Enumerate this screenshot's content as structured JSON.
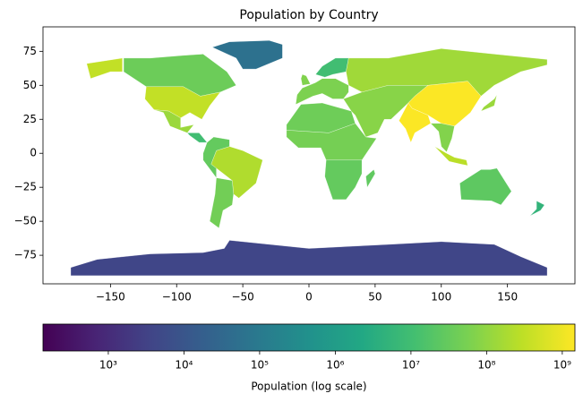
{
  "chart_data": {
    "type": "choropleth",
    "title": "Population by Country",
    "xlim": [
      -201,
      201
    ],
    "ylim": [
      -96,
      93
    ],
    "xticks": [
      {
        "value": -150,
        "label": "−150"
      },
      {
        "value": -100,
        "label": "−100"
      },
      {
        "value": -50,
        "label": "−50"
      },
      0,
      50,
      100,
      150
    ],
    "yticks": [
      75,
      50,
      25,
      0,
      {
        "value": -25,
        "label": "−25"
      },
      {
        "value": -50,
        "label": "−50"
      },
      {
        "value": -75,
        "label": "−75"
      }
    ],
    "colorbar": {
      "label": "Population (log scale)",
      "log_scale": true,
      "colormap": "viridis",
      "clim": [
        137,
        1470000000
      ],
      "ticks": [
        {
          "value": 1000,
          "label": "10³"
        },
        {
          "value": 10000,
          "label": "10⁴"
        },
        {
          "value": 100000,
          "label": "10⁵"
        },
        {
          "value": 1000000,
          "label": "10⁶"
        },
        {
          "value": 10000000,
          "label": "10⁷"
        },
        {
          "value": 100000000,
          "label": "10⁸"
        },
        {
          "value": 1000000000,
          "label": "10⁹"
        }
      ]
    },
    "regions": [
      {
        "population": 56000,
        "outlines": [
          [
            [
              -73,
              78
            ],
            [
              -60,
              82
            ],
            [
              -30,
              83
            ],
            [
              -20,
              80
            ],
            [
              -20,
              70
            ],
            [
              -40,
              62
            ],
            [
              -50,
              62
            ],
            [
              -55,
              70
            ]
          ]
        ]
      },
      {
        "population": 38000000,
        "outlines": [
          [
            [
              -140,
              70
            ],
            [
              -120,
              70
            ],
            [
              -95,
              72
            ],
            [
              -80,
              73
            ],
            [
              -62,
              60
            ],
            [
              -55,
              50
            ],
            [
              -67,
              45
            ],
            [
              -82,
              42
            ],
            [
              -95,
              49
            ],
            [
              -123,
              49
            ],
            [
              -140,
              60
            ]
          ]
        ]
      },
      {
        "population": 330000000,
        "outlines": [
          [
            [
              -123,
              49
            ],
            [
              -95,
              49
            ],
            [
              -82,
              42
            ],
            [
              -67,
              45
            ],
            [
              -75,
              35
            ],
            [
              -81,
              25
            ],
            [
              -90,
              30
            ],
            [
              -97,
              26
            ],
            [
              -106,
              31
            ],
            [
              -117,
              32
            ],
            [
              -124,
              40
            ]
          ],
          [
            [
              -168,
              66
            ],
            [
              -141,
              70
            ],
            [
              -141,
              60
            ],
            [
              -150,
              60
            ],
            [
              -165,
              55
            ]
          ]
        ]
      },
      {
        "population": 128000000,
        "outlines": [
          [
            [
              -117,
              32
            ],
            [
              -106,
              31
            ],
            [
              -97,
              26
            ],
            [
              -97,
              19
            ],
            [
              -87,
              21
            ],
            [
              -92,
              15
            ],
            [
              -105,
              20
            ],
            [
              -110,
              30
            ]
          ]
        ]
      },
      {
        "population": 10000000,
        "outlines": [
          [
            [
              -92,
              15
            ],
            [
              -83,
              15
            ],
            [
              -77,
              8
            ],
            [
              -83,
              8
            ],
            [
              -90,
              13
            ]
          ]
        ]
      },
      {
        "population": 212000000,
        "outlines": [
          [
            [
              -74,
              -8
            ],
            [
              -70,
              2
            ],
            [
              -60,
              5
            ],
            [
              -50,
              2
            ],
            [
              -35,
              -5
            ],
            [
              -40,
              -22
            ],
            [
              -53,
              -33
            ],
            [
              -57,
              -30
            ],
            [
              -58,
              -20
            ],
            [
              -70,
              -11
            ]
          ]
        ]
      },
      {
        "population": 30000000,
        "outlines": [
          [
            [
              -80,
              0
            ],
            [
              -77,
              8
            ],
            [
              -72,
              12
            ],
            [
              -60,
              10
            ],
            [
              -60,
              5
            ],
            [
              -70,
              2
            ],
            [
              -74,
              -8
            ],
            [
              -70,
              -11
            ],
            [
              -70,
              -18
            ],
            [
              -80,
              -5
            ]
          ]
        ]
      },
      {
        "population": 45000000,
        "outlines": [
          [
            [
              -70,
              -18
            ],
            [
              -58,
              -20
            ],
            [
              -57,
              -30
            ],
            [
              -58,
              -38
            ],
            [
              -65,
              -42
            ],
            [
              -68,
              -55
            ],
            [
              -75,
              -50
            ],
            [
              -71,
              -30
            ]
          ]
        ]
      },
      {
        "population": 40000000,
        "outlines": [
          [
            [
              -17,
              21
            ],
            [
              -6,
              36
            ],
            [
              10,
              37
            ],
            [
              32,
              31
            ],
            [
              35,
              22
            ],
            [
              15,
              15
            ],
            [
              -17,
              17
            ]
          ]
        ]
      },
      {
        "population": 50000000,
        "outlines": [
          [
            [
              -17,
              17
            ],
            [
              15,
              15
            ],
            [
              35,
              22
            ],
            [
              43,
              12
            ],
            [
              51,
              11
            ],
            [
              40,
              -5
            ],
            [
              13,
              -5
            ],
            [
              9,
              4
            ],
            [
              -8,
              4
            ],
            [
              -17,
              12
            ]
          ]
        ]
      },
      {
        "population": 30000000,
        "outlines": [
          [
            [
              13,
              -5
            ],
            [
              40,
              -5
            ],
            [
              40,
              -15
            ],
            [
              35,
              -25
            ],
            [
              28,
              -34
            ],
            [
              18,
              -34
            ],
            [
              12,
              -17
            ]
          ]
        ]
      },
      {
        "population": 27000000,
        "outlines": [
          [
            [
              44,
              -25
            ],
            [
              50,
              -15
            ],
            [
              49,
              -12
            ],
            [
              43,
              -17
            ]
          ]
        ]
      },
      {
        "population": 60000000,
        "outlines": [
          [
            [
              -10,
              36
            ],
            [
              -9,
              43
            ],
            [
              -5,
              48
            ],
            [
              5,
              52
            ],
            [
              10,
              55
            ],
            [
              20,
              55
            ],
            [
              30,
              50
            ],
            [
              30,
              45
            ],
            [
              26,
              40
            ],
            [
              18,
              40
            ],
            [
              10,
              44
            ],
            [
              3,
              42
            ]
          ]
        ]
      },
      {
        "population": 10000000,
        "outlines": [
          [
            [
              5,
              58
            ],
            [
              10,
              64
            ],
            [
              20,
              70
            ],
            [
              30,
              70
            ],
            [
              28,
              60
            ],
            [
              18,
              58
            ],
            [
              12,
              56
            ]
          ]
        ]
      },
      {
        "population": 67000000,
        "outlines": [
          [
            [
              -5,
              50
            ],
            [
              1,
              51
            ],
            [
              -2,
              57
            ],
            [
              -5,
              58
            ],
            [
              -6,
              55
            ]
          ]
        ]
      },
      {
        "population": 145000000,
        "outlines": [
          [
            [
              30,
              70
            ],
            [
              60,
              70
            ],
            [
              100,
              77
            ],
            [
              140,
              73
            ],
            [
              180,
              69
            ],
            [
              180,
              65
            ],
            [
              160,
              60
            ],
            [
              140,
              50
            ],
            [
              130,
              42
            ],
            [
              120,
              53
            ],
            [
              90,
              50
            ],
            [
              60,
              50
            ],
            [
              40,
              45
            ],
            [
              30,
              50
            ],
            [
              28,
              60
            ]
          ]
        ]
      },
      {
        "population": 80000000,
        "outlines": [
          [
            [
              26,
              40
            ],
            [
              40,
              45
            ],
            [
              60,
              50
            ],
            [
              90,
              50
            ],
            [
              80,
              42
            ],
            [
              75,
              37
            ],
            [
              62,
              25
            ],
            [
              57,
              25
            ],
            [
              52,
              15
            ],
            [
              43,
              12
            ],
            [
              35,
              28
            ],
            [
              32,
              31
            ]
          ]
        ]
      },
      {
        "population": 1400000000,
        "outlines": [
          [
            [
              75,
              37
            ],
            [
              80,
              42
            ],
            [
              90,
              50
            ],
            [
              120,
              53
            ],
            [
              130,
              42
            ],
            [
              122,
              30
            ],
            [
              110,
              20
            ],
            [
              100,
              22
            ],
            [
              90,
              28
            ],
            [
              78,
              33
            ]
          ]
        ]
      },
      {
        "population": 1380000000,
        "outlines": [
          [
            [
              68,
              24
            ],
            [
              75,
              37
            ],
            [
              78,
              33
            ],
            [
              90,
              28
            ],
            [
              92,
              22
            ],
            [
              80,
              15
            ],
            [
              77,
              8
            ],
            [
              73,
              18
            ]
          ]
        ]
      },
      {
        "population": 70000000,
        "outlines": [
          [
            [
              92,
              22
            ],
            [
              100,
              22
            ],
            [
              110,
              20
            ],
            [
              108,
              11
            ],
            [
              104,
              1
            ],
            [
              100,
              5
            ],
            [
              98,
              16
            ]
          ]
        ]
      },
      {
        "population": 270000000,
        "outlines": [
          [
            [
              95,
              5
            ],
            [
              106,
              -6
            ],
            [
              115,
              -8
            ],
            [
              120,
              -9
            ],
            [
              119,
              -5
            ],
            [
              110,
              -3
            ],
            [
              104,
              0
            ]
          ]
        ]
      },
      {
        "population": 126000000,
        "outlines": [
          [
            [
              130,
              31
            ],
            [
              140,
              35
            ],
            [
              142,
              43
            ],
            [
              140,
              40
            ],
            [
              132,
              34
            ]
          ]
        ]
      },
      {
        "population": 25000000,
        "outlines": [
          [
            [
              114,
              -22
            ],
            [
              130,
              -12
            ],
            [
              137,
              -12
            ],
            [
              142,
              -11
            ],
            [
              153,
              -28
            ],
            [
              145,
              -38
            ],
            [
              138,
              -35
            ],
            [
              115,
              -34
            ]
          ]
        ]
      },
      {
        "population": 5000000,
        "outlines": [
          [
            [
              172,
              -35
            ],
            [
              178,
              -38
            ],
            [
              175,
              -42
            ],
            [
              167,
              -46
            ],
            [
              172,
              -41
            ]
          ]
        ]
      },
      {
        "population": 4000,
        "outlines": [
          [
            [
              -180,
              -84
            ],
            [
              -180,
              -90
            ],
            [
              180,
              -90
            ],
            [
              180,
              -84
            ],
            [
              160,
              -76
            ],
            [
              140,
              -67
            ],
            [
              100,
              -65
            ],
            [
              60,
              -67
            ],
            [
              0,
              -70
            ],
            [
              -60,
              -64
            ],
            [
              -64,
              -70
            ],
            [
              -80,
              -73
            ],
            [
              -120,
              -74
            ],
            [
              -160,
              -78
            ]
          ]
        ]
      }
    ]
  }
}
